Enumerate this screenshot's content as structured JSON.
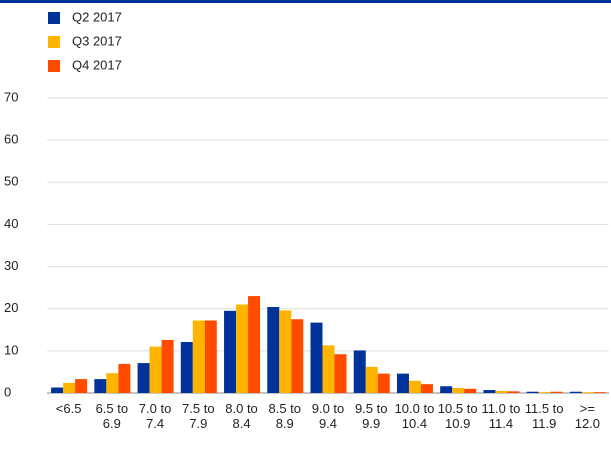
{
  "chart_data": {
    "type": "bar",
    "categories": [
      "<6.5",
      "6.5 to 6.9",
      "7.0 to 7.4",
      "7.5 to 7.9",
      "8.0 to 8.4",
      "8.5 to 8.9",
      "9.0 to 9.4",
      "9.5 to 9.9",
      "10.0 to 10.4",
      "10.5 to 10.9",
      "11.0 to 11.4",
      "11.5 to 11.9",
      ">= 12.0"
    ],
    "series": [
      {
        "name": "Q2 2017",
        "color": "#003299",
        "values": [
          1.3,
          3.3,
          7.1,
          12.1,
          19.5,
          20.4,
          16.7,
          10.1,
          4.6,
          1.6,
          0.7,
          0.3,
          0.3
        ]
      },
      {
        "name": "Q3 2017",
        "color": "#ffb400",
        "values": [
          2.4,
          4.7,
          11.0,
          17.2,
          21.0,
          19.6,
          11.3,
          6.2,
          2.9,
          1.2,
          0.5,
          0.2,
          0.2
        ]
      },
      {
        "name": "Q4 2017",
        "color": "#ff4b00",
        "values": [
          3.3,
          6.9,
          12.6,
          17.2,
          23.0,
          17.5,
          9.2,
          4.6,
          2.1,
          1.0,
          0.4,
          0.3,
          0.2
        ]
      }
    ],
    "ylim": [
      0,
      70
    ],
    "yticks": [
      0,
      10,
      20,
      30,
      40,
      50,
      60,
      70
    ],
    "grid": true,
    "legend": "top-left"
  }
}
